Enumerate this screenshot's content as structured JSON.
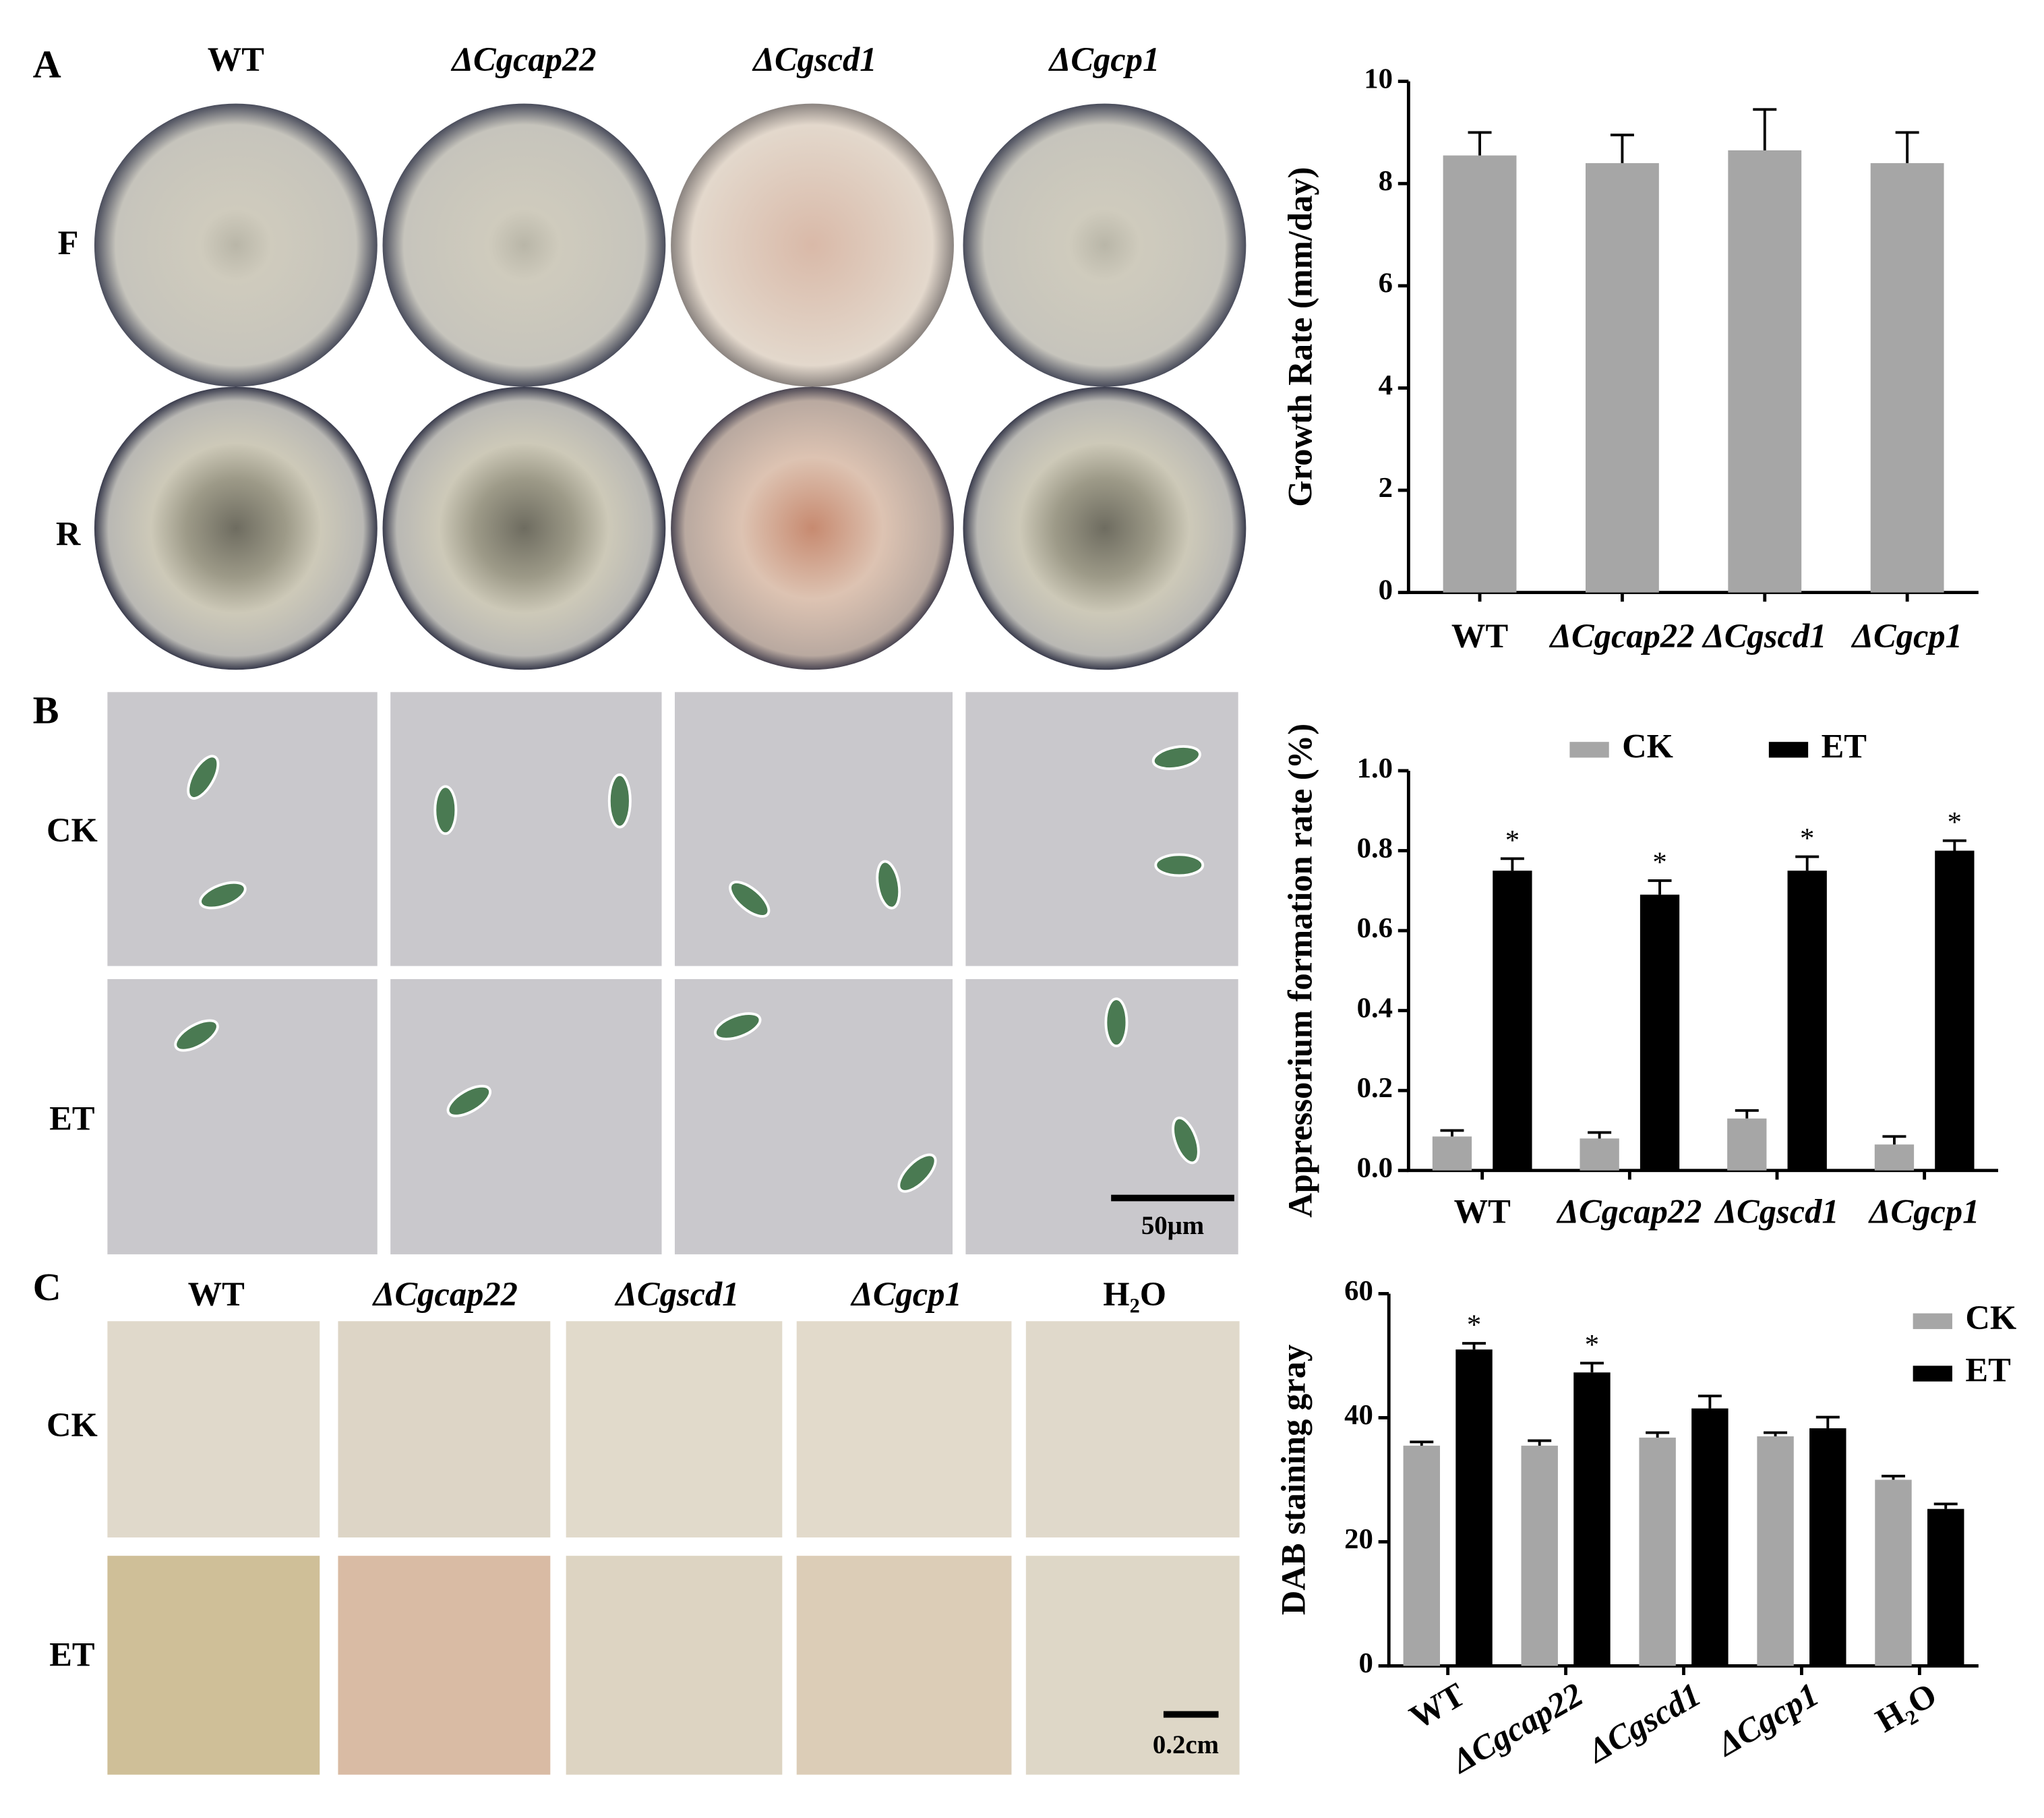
{
  "panel_a": {
    "label": "A",
    "columns": [
      "WT",
      "ΔCgcap22",
      "ΔCgscd1",
      "ΔCgcp1"
    ],
    "rows": [
      "F",
      "R"
    ]
  },
  "panel_b": {
    "label": "B",
    "rows": [
      "CK",
      "ET"
    ],
    "scale_bar": "50μm"
  },
  "panel_c": {
    "label": "C",
    "columns": [
      "WT",
      "ΔCgcap22",
      "ΔCgscd1",
      "ΔCgcp1",
      "H₂O"
    ],
    "rows": [
      "CK",
      "ET"
    ],
    "scale_bar": "0.2cm"
  },
  "chart_data": [
    {
      "type": "bar",
      "y_label": "Growth Rate (mm/day)",
      "categories": [
        "WT",
        "ΔCgcap22",
        "ΔCgscd1",
        "ΔCgcp1"
      ],
      "values": [
        8.55,
        8.4,
        8.65,
        8.4
      ],
      "errors": [
        0.45,
        0.55,
        0.8,
        0.6
      ],
      "color": "#a6a6a6",
      "ylim": [
        0,
        10
      ],
      "yticks": [
        0,
        2,
        4,
        6,
        8,
        10
      ]
    },
    {
      "type": "grouped_bar",
      "y_label": "Appressorium formation rate (%)",
      "categories": [
        "WT",
        "ΔCgcap22",
        "ΔCgscd1",
        "ΔCgcp1"
      ],
      "series": [
        {
          "name": "CK",
          "color": "#a6a6a6",
          "values": [
            0.085,
            0.08,
            0.13,
            0.065
          ],
          "errors": [
            0.015,
            0.015,
            0.02,
            0.02
          ]
        },
        {
          "name": "ET",
          "color": "#000000",
          "values": [
            0.75,
            0.69,
            0.75,
            0.8
          ],
          "errors": [
            0.03,
            0.035,
            0.035,
            0.025
          ],
          "significance": [
            "*",
            "*",
            "*",
            "*"
          ]
        }
      ],
      "ylim": [
        0,
        1.0
      ],
      "yticks": [
        {
          "value": 0,
          "label": "0.0"
        },
        0.2,
        0.4,
        0.6,
        0.8,
        {
          "value": 1,
          "label": "1.0"
        }
      ],
      "legend": "top"
    },
    {
      "type": "grouped_bar",
      "y_label": "DAB staining gray",
      "categories": [
        "WT",
        "ΔCgcap22",
        "ΔCgscd1",
        "ΔCgcp1",
        "H₂O"
      ],
      "series": [
        {
          "name": "CK",
          "color": "#a6a6a6",
          "values": [
            35.5,
            35.5,
            36.8,
            37,
            30
          ],
          "errors": [
            0.6,
            0.8,
            0.8,
            0.6,
            0.6
          ]
        },
        {
          "name": "ET",
          "color": "#000000",
          "values": [
            51,
            47.3,
            41.5,
            38.3,
            25.3
          ],
          "errors": [
            1,
            1.5,
            2,
            1.8,
            0.8
          ],
          "significance": [
            "*",
            "*",
            null,
            null,
            null
          ]
        }
      ],
      "ylim": [
        0,
        60
      ],
      "yticks": [
        0,
        20,
        40,
        60
      ],
      "legend": "upper right"
    }
  ]
}
